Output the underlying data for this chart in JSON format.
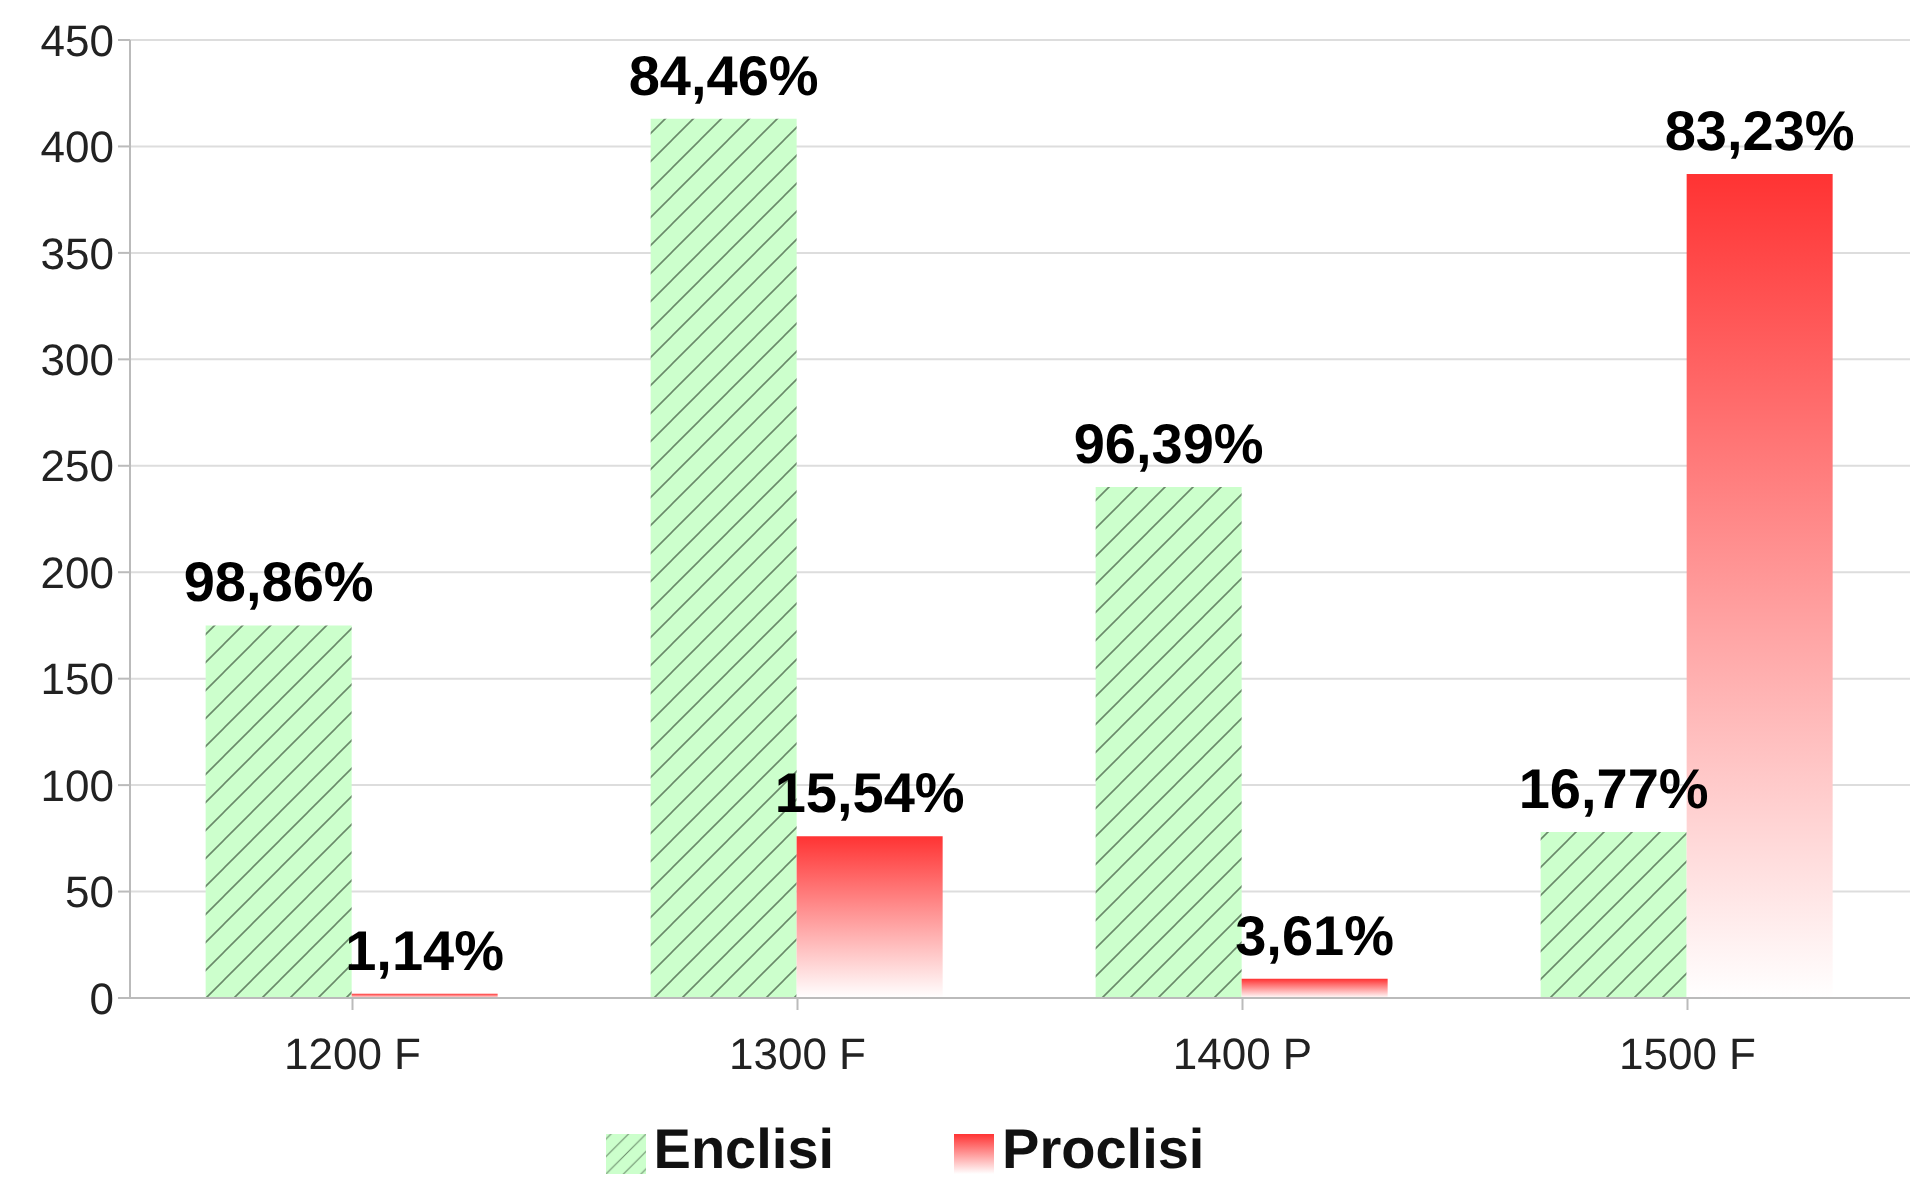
{
  "chart_data": {
    "type": "bar",
    "categories": [
      "1200 F",
      "1300 F",
      "1400 P",
      "1500 F"
    ],
    "series": [
      {
        "name": "Enclisi",
        "color": "#ccffcc",
        "values": [
          175,
          413,
          240,
          78
        ]
      },
      {
        "name": "Proclisi",
        "color": "#ff3333",
        "values": [
          2,
          76,
          9,
          387
        ]
      }
    ],
    "annotations": [
      {
        "text": "98,86%",
        "x": "1200 F",
        "y": 175
      },
      {
        "text": "84,46%",
        "x": "1300 F",
        "y": 413
      },
      {
        "text": "96,39%",
        "x": "1400 P",
        "y": 240
      },
      {
        "text": "16,77%",
        "x": "1500 F",
        "y": 78
      },
      {
        "text": "1,14%",
        "x": "1200 F",
        "y": 2
      },
      {
        "text": "15,54%",
        "x": "1300 F",
        "y": 76
      },
      {
        "text": "3,61%",
        "x": "1400 P",
        "y": 9
      },
      {
        "text": "83,23%",
        "x": "1500 F",
        "y": 387
      }
    ],
    "ylim": [
      0,
      450
    ],
    "yticks": [
      0,
      50,
      100,
      150,
      200,
      250,
      300,
      350,
      400,
      450
    ],
    "grid": "y",
    "legend": "bottom"
  }
}
